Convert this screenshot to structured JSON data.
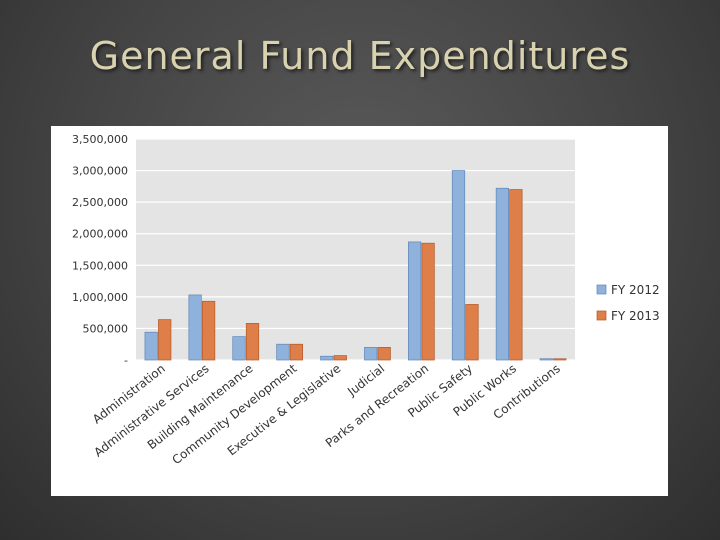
{
  "slide": {
    "title": "General Fund Expenditures"
  },
  "colors": {
    "fy2012": "#8fb2dc",
    "fy2012_edge": "#5f86b8",
    "fy2013": "#de7e48",
    "fy2013_edge": "#b25a28",
    "plot_bg": "#e4e4e4",
    "grid": "#ffffff",
    "text": "#333333"
  },
  "chart_data": {
    "type": "bar",
    "title": "",
    "xlabel": "",
    "ylabel": "",
    "ylim": [
      0,
      3500000
    ],
    "yticks": [
      0,
      500000,
      1000000,
      1500000,
      2000000,
      2500000,
      3000000,
      3500000
    ],
    "ytick_labels": [
      "-",
      "500,000",
      "1,000,000",
      "1,500,000",
      "2,000,000",
      "2,500,000",
      "3,000,000",
      "3,500,000"
    ],
    "grid": true,
    "legend_position": "right",
    "categories": [
      "Administration",
      "Administrative Services",
      "Building Maintenance",
      "Community Development",
      "Executive & Legislative",
      "Judicial",
      "Parks and Recreation",
      "Public Safety",
      "Public Works",
      "Contributions"
    ],
    "series": [
      {
        "name": "FY 2012",
        "values": [
          440000,
          1030000,
          370000,
          250000,
          60000,
          200000,
          1870000,
          3000000,
          2720000,
          20000
        ]
      },
      {
        "name": "FY 2013",
        "values": [
          640000,
          930000,
          580000,
          250000,
          70000,
          200000,
          1850000,
          880000,
          2700000,
          20000
        ]
      }
    ]
  }
}
